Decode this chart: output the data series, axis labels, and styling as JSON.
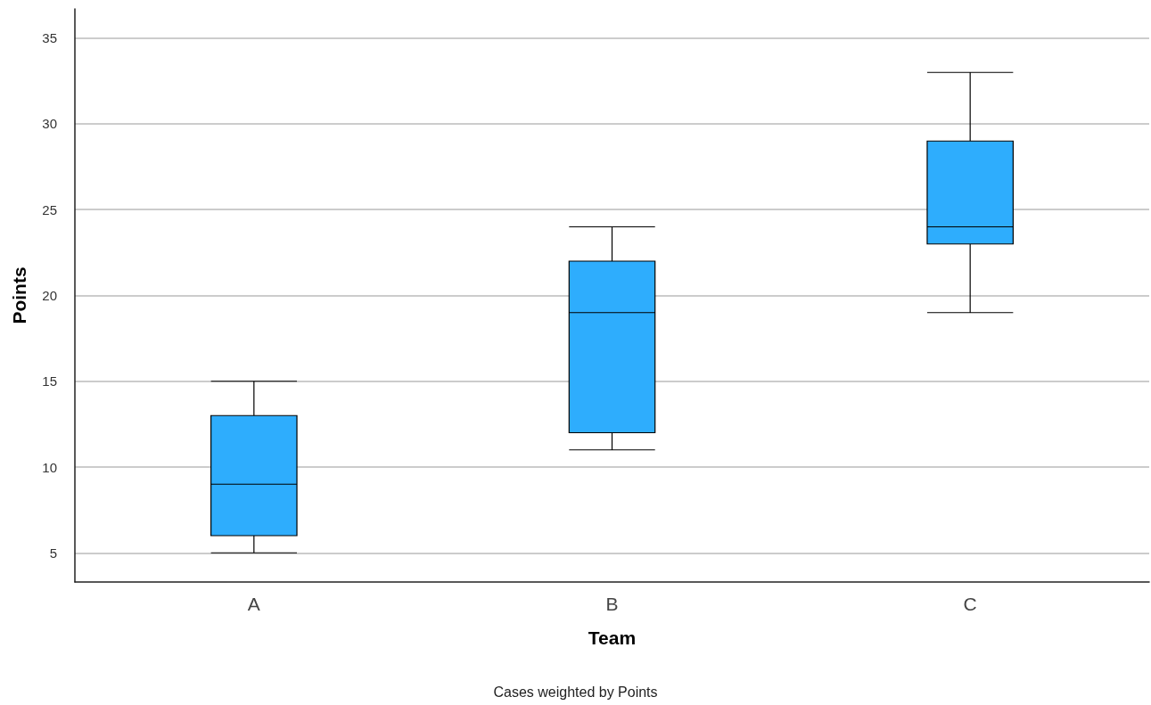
{
  "chart_data": {
    "type": "box",
    "xlabel": "Team",
    "ylabel": "Points",
    "annotations": [
      "Cases weighted by Points"
    ],
    "categories": [
      "A",
      "B",
      "C"
    ],
    "color": "#2eadfd",
    "boxes": [
      {
        "low": 5,
        "q1": 6,
        "median": 9,
        "q3": 13,
        "high": 15
      },
      {
        "low": 11,
        "q1": 12,
        "median": 19,
        "q3": 22,
        "high": 24
      },
      {
        "low": 19,
        "q1": 23,
        "median": 24,
        "q3": 29,
        "high": 33
      }
    ],
    "ylim": [
      3.3,
      36.7
    ],
    "yticks": [
      5,
      10,
      15,
      20,
      25,
      30,
      35
    ],
    "grid": "y"
  }
}
